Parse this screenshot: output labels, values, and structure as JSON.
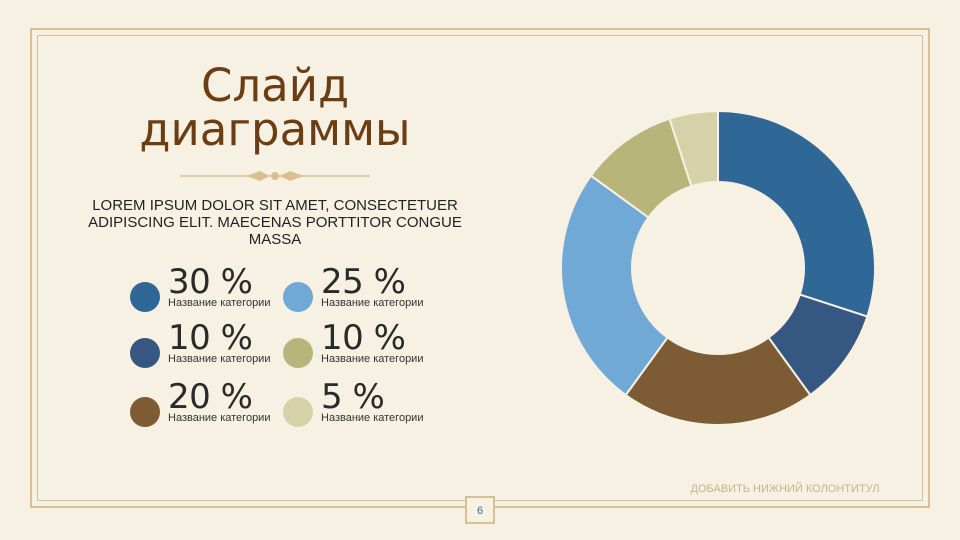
{
  "slide": {
    "title": "Слайд диаграммы",
    "subtitle": "Lorem ipsum dolor sit amet, consectetuer adipiscing elit. Maecenas porttitor congue massa",
    "footer": "Добавить нижний колонтитул",
    "page_number": "6"
  },
  "legend": [
    {
      "value": "30 %",
      "label": "Название категории",
      "color": "#2f6797"
    },
    {
      "value": "25 %",
      "label": "Название категории",
      "color": "#70a8d6"
    },
    {
      "value": "10 %",
      "label": "Название категории",
      "color": "#355781"
    },
    {
      "value": "10 %",
      "label": "Название категории",
      "color": "#b8b57a"
    },
    {
      "value": "20 %",
      "label": "Название категории",
      "color": "#7c5b35"
    },
    {
      "value": "5 %",
      "label": "Название категории",
      "color": "#d5d2aa"
    }
  ],
  "chart_data": {
    "type": "pie",
    "donut": true,
    "start_angle": "12 o'clock",
    "direction": "clockwise",
    "slices": [
      {
        "value": 30,
        "color": "#2f6797"
      },
      {
        "value": 10,
        "color": "#355781"
      },
      {
        "value": 20,
        "color": "#7c5b35"
      },
      {
        "value": 25,
        "color": "#70a8d6"
      },
      {
        "value": 10,
        "color": "#b8b57a"
      },
      {
        "value": 5,
        "color": "#d5d2aa"
      }
    ]
  }
}
